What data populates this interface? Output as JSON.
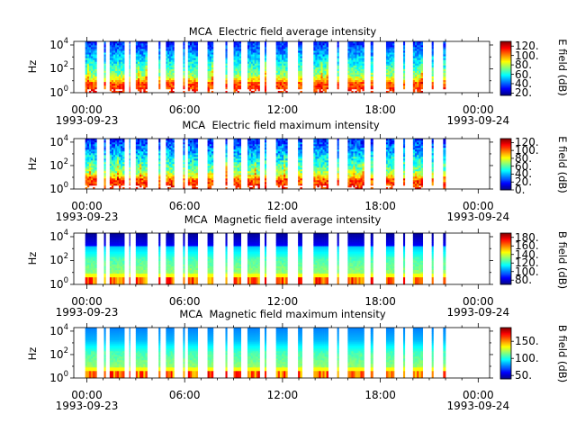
{
  "panels": [
    {
      "title": "MCA  Electric field average intensity",
      "ylabel": "Hz",
      "colorbar_label": "E field (dB)",
      "colorbar_ticks": [
        "120.",
        "100.",
        "80.",
        "60.",
        "40.",
        "20."
      ],
      "colorbar_range": [
        15,
        130
      ]
    },
    {
      "title": "MCA  Electric field maximum intensity",
      "ylabel": "Hz",
      "colorbar_label": "E field (dB)",
      "colorbar_ticks": [
        "120.",
        "100.",
        "80.",
        "60.",
        "40.",
        "20.",
        "0."
      ],
      "colorbar_range": [
        0,
        130
      ]
    },
    {
      "title": "MCA  Magnetic field average intensity",
      "ylabel": "Hz",
      "colorbar_label": "B field (dB)",
      "colorbar_ticks": [
        "180.",
        "160.",
        "140.",
        "120.",
        "100.",
        "80."
      ],
      "colorbar_range": [
        70,
        190
      ]
    },
    {
      "title": "MCA  Magnetic field maximum intensity",
      "ylabel": "Hz",
      "colorbar_label": "B field (dB)",
      "colorbar_ticks": [
        "150.",
        "100.",
        "50."
      ],
      "colorbar_range": [
        40,
        190
      ]
    }
  ],
  "yticks": [
    {
      "base": "10",
      "exp": "4"
    },
    {
      "base": "10",
      "exp": "2"
    },
    {
      "base": "10",
      "exp": "0"
    }
  ],
  "xticks": [
    "00:00",
    "06:00",
    "12:00",
    "18:00",
    "00:00"
  ],
  "xdates": {
    "start": "1993-09-23",
    "end": "1993-09-24"
  },
  "chart_data": [
    {
      "type": "heatmap",
      "title": "MCA  Electric field average intensity",
      "ylabel": "Hz",
      "yscale": "log",
      "ylim": [
        1,
        20000
      ],
      "xlim": [
        "1993-09-23 00:00",
        "1993-09-24 00:30"
      ],
      "colorbar": {
        "label": "E field (dB)",
        "range": [
          15,
          130
        ]
      },
      "data_intervals_hours": [
        [
          -0.1,
          0.6
        ],
        [
          1.05,
          1.15
        ],
        [
          1.4,
          2.3
        ],
        [
          2.6,
          2.65
        ],
        [
          3.0,
          3.7
        ],
        [
          4.4,
          4.5
        ],
        [
          4.85,
          5.35
        ],
        [
          5.9,
          6.0
        ],
        [
          6.2,
          6.8
        ],
        [
          7.4,
          7.75
        ],
        [
          8.5,
          8.6
        ],
        [
          9.0,
          9.45
        ],
        [
          9.85,
          10.6
        ],
        [
          10.9,
          11.0
        ],
        [
          11.6,
          12.3
        ],
        [
          12.95,
          13.2
        ],
        [
          13.9,
          14.8
        ],
        [
          15.35,
          15.45
        ],
        [
          16.0,
          17.0
        ],
        [
          17.4,
          17.55
        ],
        [
          18.35,
          18.85
        ],
        [
          19.4,
          19.5
        ],
        [
          20.0,
          20.6
        ],
        [
          21.15,
          21.25
        ],
        [
          21.85,
          22.0
        ]
      ]
    },
    {
      "type": "heatmap",
      "title": "MCA  Electric field maximum intensity",
      "ylabel": "Hz",
      "yscale": "log",
      "ylim": [
        1,
        20000
      ],
      "xlim": [
        "1993-09-23 00:00",
        "1993-09-24 00:30"
      ],
      "colorbar": {
        "label": "E field (dB)",
        "range": [
          0,
          130
        ]
      },
      "data_intervals_hours": [
        [
          -0.1,
          0.6
        ],
        [
          1.05,
          1.15
        ],
        [
          1.4,
          2.3
        ],
        [
          2.6,
          2.65
        ],
        [
          3.0,
          3.7
        ],
        [
          4.4,
          4.5
        ],
        [
          4.85,
          5.35
        ],
        [
          5.9,
          6.0
        ],
        [
          6.2,
          6.8
        ],
        [
          7.4,
          7.75
        ],
        [
          8.5,
          8.6
        ],
        [
          9.0,
          9.45
        ],
        [
          9.85,
          10.6
        ],
        [
          10.9,
          11.0
        ],
        [
          11.6,
          12.3
        ],
        [
          12.95,
          13.2
        ],
        [
          13.9,
          14.8
        ],
        [
          15.35,
          15.45
        ],
        [
          16.0,
          17.0
        ],
        [
          17.4,
          17.55
        ],
        [
          18.35,
          18.85
        ],
        [
          19.4,
          19.5
        ],
        [
          20.0,
          20.6
        ],
        [
          21.15,
          21.25
        ],
        [
          21.85,
          22.0
        ]
      ]
    },
    {
      "type": "heatmap",
      "title": "MCA  Magnetic field average intensity",
      "ylabel": "Hz",
      "yscale": "log",
      "ylim": [
        1,
        20000
      ],
      "xlim": [
        "1993-09-23 00:00",
        "1993-09-24 00:30"
      ],
      "colorbar": {
        "label": "B field (dB)",
        "range": [
          70,
          190
        ]
      },
      "data_intervals_hours": [
        [
          -0.1,
          0.6
        ],
        [
          1.05,
          1.15
        ],
        [
          1.4,
          2.3
        ],
        [
          2.6,
          2.65
        ],
        [
          3.0,
          3.7
        ],
        [
          4.4,
          4.5
        ],
        [
          4.85,
          5.35
        ],
        [
          5.9,
          6.0
        ],
        [
          6.2,
          6.8
        ],
        [
          7.4,
          7.75
        ],
        [
          8.5,
          8.6
        ],
        [
          9.0,
          9.45
        ],
        [
          9.85,
          10.6
        ],
        [
          10.9,
          11.0
        ],
        [
          11.6,
          12.3
        ],
        [
          12.95,
          13.2
        ],
        [
          13.9,
          14.8
        ],
        [
          15.35,
          15.45
        ],
        [
          16.0,
          17.0
        ],
        [
          17.4,
          17.55
        ],
        [
          18.35,
          18.85
        ],
        [
          19.4,
          19.5
        ],
        [
          20.0,
          20.6
        ],
        [
          21.15,
          21.25
        ],
        [
          21.85,
          22.0
        ]
      ]
    },
    {
      "type": "heatmap",
      "title": "MCA  Magnetic field maximum intensity",
      "ylabel": "Hz",
      "yscale": "log",
      "ylim": [
        1,
        20000
      ],
      "xlim": [
        "1993-09-23 00:00",
        "1993-09-24 00:30"
      ],
      "colorbar": {
        "label": "B field (dB)",
        "range": [
          40,
          190
        ]
      },
      "data_intervals_hours": [
        [
          -0.1,
          0.6
        ],
        [
          1.05,
          1.15
        ],
        [
          1.4,
          2.3
        ],
        [
          2.6,
          2.65
        ],
        [
          3.0,
          3.7
        ],
        [
          4.4,
          4.5
        ],
        [
          4.85,
          5.35
        ],
        [
          5.9,
          6.0
        ],
        [
          6.2,
          6.8
        ],
        [
          7.4,
          7.75
        ],
        [
          8.5,
          8.6
        ],
        [
          9.0,
          9.45
        ],
        [
          9.85,
          10.6
        ],
        [
          10.9,
          11.0
        ],
        [
          11.6,
          12.3
        ],
        [
          12.95,
          13.2
        ],
        [
          13.9,
          14.8
        ],
        [
          15.35,
          15.45
        ],
        [
          16.0,
          17.0
        ],
        [
          17.4,
          17.55
        ],
        [
          18.35,
          18.85
        ],
        [
          19.4,
          19.5
        ],
        [
          20.0,
          20.6
        ],
        [
          21.15,
          21.25
        ],
        [
          21.85,
          22.0
        ]
      ]
    }
  ]
}
